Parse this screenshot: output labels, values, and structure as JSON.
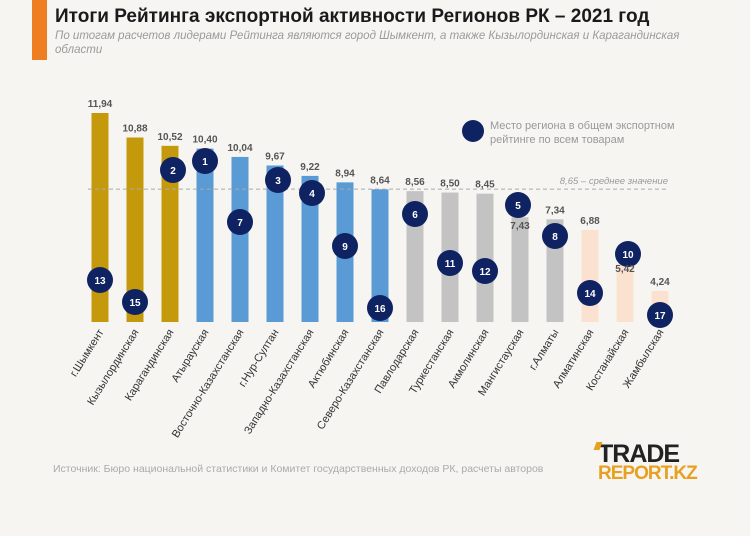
{
  "title": "Итоги Рейтинга экспортной активности Регионов РК – 2021 год",
  "subtitle": "По итогам расчетов лидерами Рейтинга являются город Шымкент, а также Кызылординская и Карагандинская области",
  "source": "Источник: Бюро национальной статистики и Комитет государственных доходов РК, расчеты авторов",
  "logo": {
    "line1": "TRADE",
    "line2": "REPORT.KZ"
  },
  "chart_data": {
    "type": "bar",
    "categories": [
      "г.Шымкент",
      "Кызылординская",
      "Карагандинская",
      "Атырауская",
      "Восточно-Казахстанская",
      "г.Нур-Султан",
      "Западно-Казахстанская",
      "Актюбинская",
      "Северо-Казахстанская",
      "Павлодарская",
      "Туркестанская",
      "Акмолинская",
      "Мангистауская",
      "г.Алматы",
      "Алматинская",
      "Костанайская",
      "Жамбылская"
    ],
    "values": [
      11.94,
      10.88,
      10.52,
      10.4,
      10.04,
      9.67,
      9.22,
      8.94,
      8.64,
      8.56,
      8.5,
      8.45,
      7.43,
      7.34,
      6.88,
      5.42,
      4.24
    ],
    "value_labels": [
      "11,94",
      "10,88",
      "10,52",
      "10,40",
      "10,04",
      "9,67",
      "9,22",
      "8,94",
      "8,64",
      "8,56",
      "8,50",
      "8,45",
      "7,43",
      "7,34",
      "6,88",
      "5,42",
      "4,24"
    ],
    "groups": [
      "gold",
      "gold",
      "gold",
      "blue",
      "blue",
      "blue",
      "blue",
      "blue",
      "blue",
      "gray",
      "gray",
      "gray",
      "gray",
      "gray",
      "peach",
      "peach",
      "peach"
    ],
    "colors": {
      "gold": "#c49a0c",
      "blue": "#5b9bd5",
      "gray": "#c3c3c3",
      "peach": "#fbe2d0",
      "marker": "#0f2362"
    },
    "export_rank": [
      13,
      15,
      2,
      1,
      7,
      3,
      4,
      9,
      16,
      6,
      11,
      12,
      5,
      8,
      14,
      10,
      17
    ],
    "average": {
      "value": 8.65,
      "label": "8,65 – среднее значение"
    },
    "legend": {
      "label": "Место региона в  общем экспортном рейтинге по всем товарам",
      "line1": "Место региона в  общем экспортном",
      "line2": "рейтинге по всем товарам",
      "placement": "top-right"
    },
    "ylim": [
      2.9,
      12.5
    ],
    "grid": false
  }
}
